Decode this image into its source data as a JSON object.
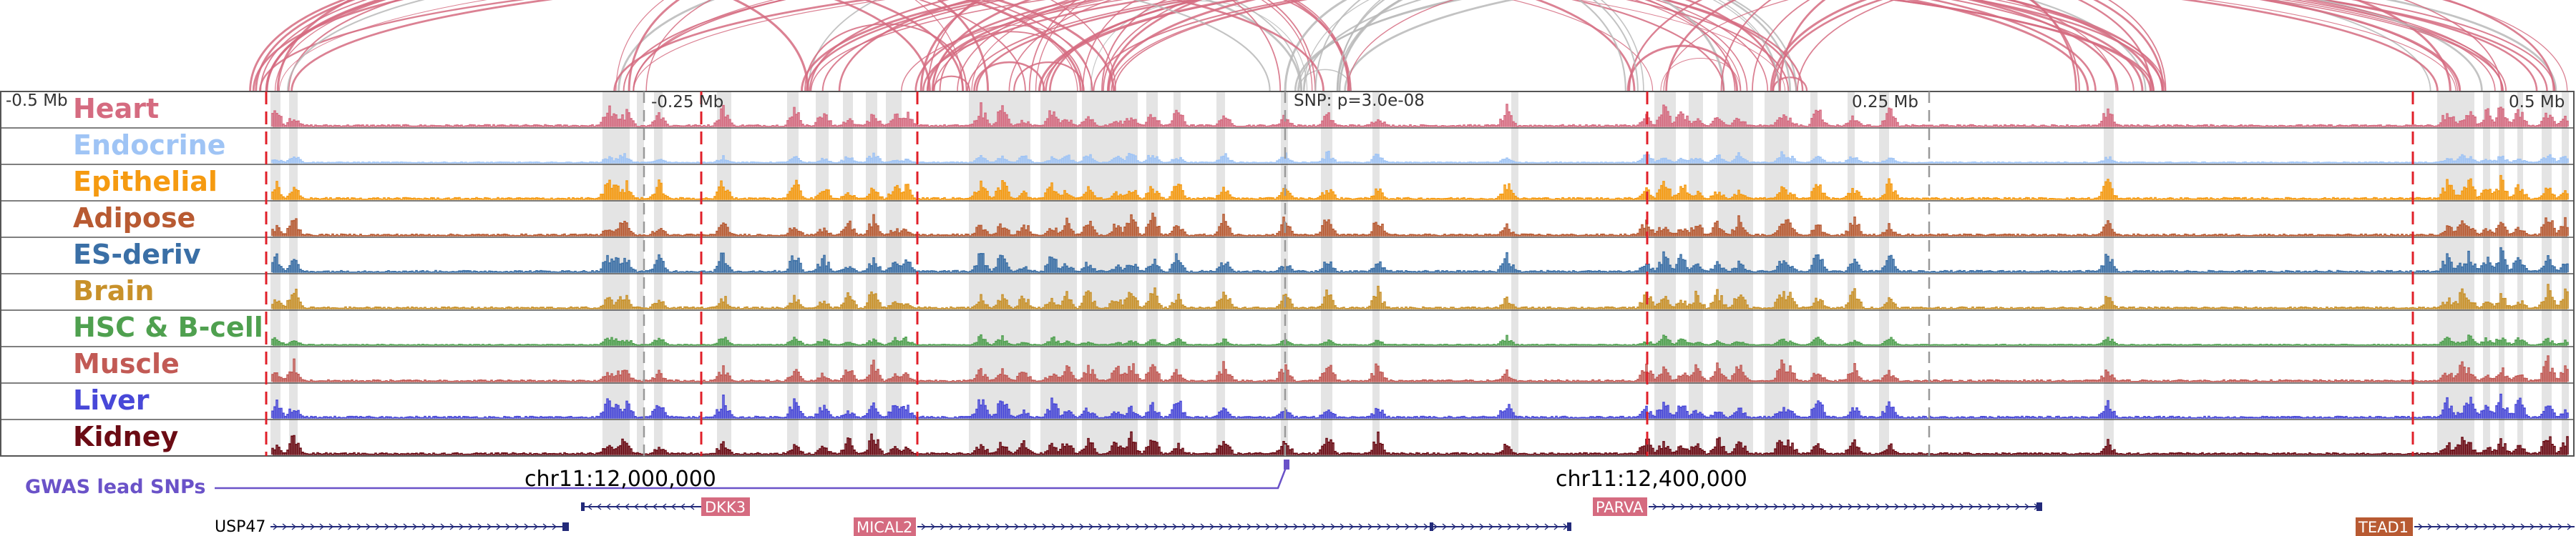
{
  "colors": {
    "arc": "#d56b80",
    "arc_gray": "#b8b8b8",
    "highlight_bg": "#e4e4e4",
    "boundary_red": "#e0202a",
    "snp_gray": "#999999",
    "gwas": "#6a52c8",
    "gene_line": "#232a7a",
    "background": "#ffffff"
  },
  "scale": {
    "left_label": "-0.5 Mb",
    "mid_left_label": "-0.25 Mb",
    "snp_label": "SNP: p=3.0e-08",
    "mid_right_label": "0.25 Mb",
    "right_label": "0.5 Mb"
  },
  "tracks": [
    {
      "name": "Heart",
      "color": "#d56b80"
    },
    {
      "name": "Endocrine",
      "color": "#9fc4f5"
    },
    {
      "name": "Epithelial",
      "color": "#f59a10"
    },
    {
      "name": "Adipose",
      "color": "#b85a32"
    },
    {
      "name": "ES-deriv",
      "color": "#3a6fa6"
    },
    {
      "name": "Brain",
      "color": "#c8912a"
    },
    {
      "name": "HSC & B-cell",
      "color": "#4fa04f"
    },
    {
      "name": "Muscle",
      "color": "#c25a55"
    },
    {
      "name": "Liver",
      "color": "#4848d8"
    },
    {
      "name": "Kidney",
      "color": "#6b0b14"
    }
  ],
  "gwas": {
    "label": "GWAS lead SNPs"
  },
  "coordinates": {
    "left": "chr11:12,000,000",
    "right": "chr11:12,400,000"
  },
  "genes": [
    {
      "name": "USP47",
      "color": "#ffffff",
      "text_color": "#000000"
    },
    {
      "name": "DKK3",
      "color": "#d56b80",
      "text_color": "#ffffff"
    },
    {
      "name": "MICAL2",
      "color": "#d56b80",
      "text_color": "#ffffff"
    },
    {
      "name": "PARVA",
      "color": "#d56b80",
      "text_color": "#ffffff"
    },
    {
      "name": "TEAD1",
      "color": "#b85a32",
      "text_color": "#ffffff"
    }
  ]
}
